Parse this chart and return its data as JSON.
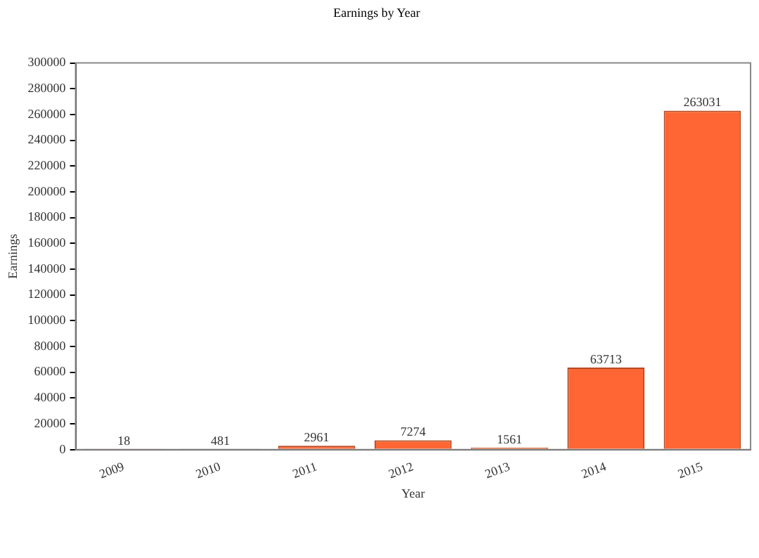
{
  "chart_data": {
    "type": "bar",
    "title": "Earnings by Year",
    "xlabel": "Year",
    "ylabel": "Earnings",
    "categories": [
      "2009",
      "2010",
      "2011",
      "2012",
      "2013",
      "2014",
      "2015"
    ],
    "values": [
      18,
      481,
      2961,
      7274,
      1561,
      63713,
      263031
    ],
    "color": "#ff6633",
    "ylim": [
      0,
      300000
    ],
    "yticks": [
      0,
      20000,
      40000,
      60000,
      80000,
      100000,
      120000,
      140000,
      160000,
      180000,
      200000,
      220000,
      240000,
      260000,
      280000,
      300000
    ],
    "data_labels": true,
    "grid": false,
    "legend": false
  }
}
